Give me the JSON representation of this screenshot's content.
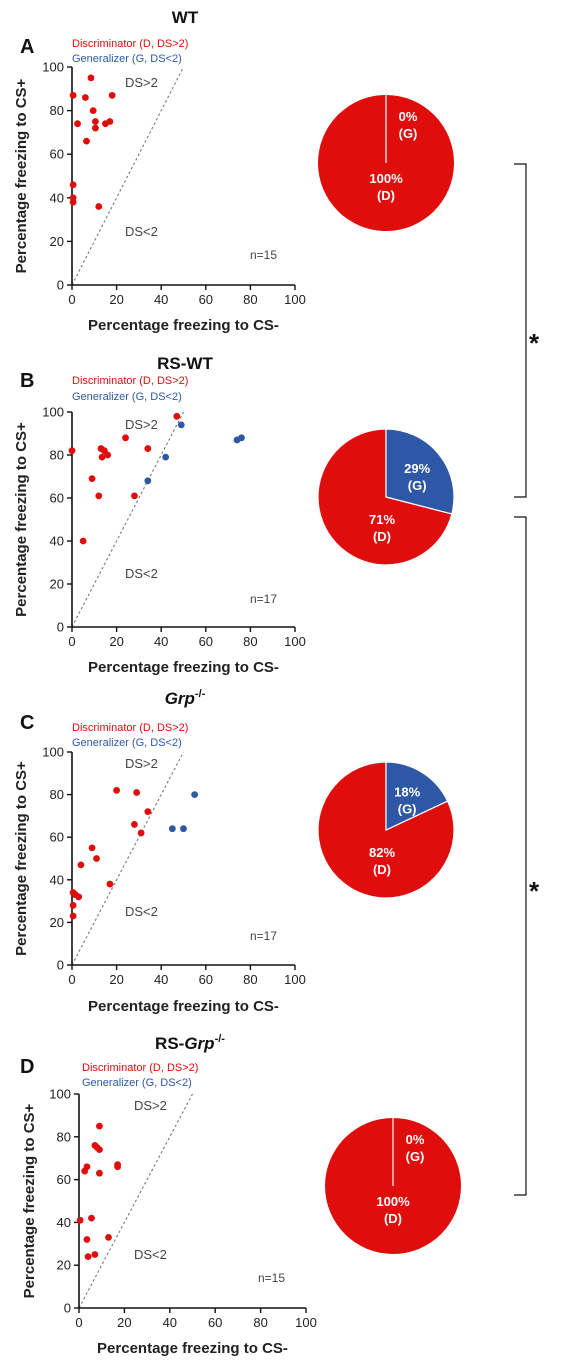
{
  "colors": {
    "discriminator": "#e00d0d",
    "generalizer": "#2e58a5",
    "diagonal": "#777777",
    "axis": "#111111"
  },
  "legend": {
    "discriminator": "Discriminator (D, DS>2)",
    "generalizer": "Generalizer (G, DS<2)"
  },
  "region_labels": {
    "above": "DS>2",
    "below": "DS<2"
  },
  "significance_marker": "*",
  "chart_data": [
    {
      "type": "scatter",
      "panel_label": "A",
      "title": "WT",
      "xlabel": "Percentage freezing to CS-",
      "ylabel": "Percentage freezing to CS+",
      "xlim": [
        0,
        100
      ],
      "ylim": [
        0,
        100
      ],
      "xticks": [
        0,
        20,
        40,
        60,
        80,
        100
      ],
      "yticks": [
        0,
        20,
        40,
        60,
        80,
        100
      ],
      "n_label": "n=15",
      "show_legend": true,
      "series": [
        {
          "name": "Discriminator (D, DS>2)",
          "group": "D",
          "points": [
            [
              0.5,
              87
            ],
            [
              0.5,
              46
            ],
            [
              0.5,
              40
            ],
            [
              0.5,
              38
            ],
            [
              2.5,
              74
            ],
            [
              6,
              86
            ],
            [
              6.5,
              66
            ],
            [
              8.5,
              95
            ],
            [
              9.5,
              80
            ],
            [
              10.5,
              75
            ],
            [
              10.5,
              72
            ],
            [
              12,
              36
            ],
            [
              15,
              74
            ],
            [
              17,
              75
            ],
            [
              18,
              87
            ]
          ]
        },
        {
          "name": "Generalizer (G, DS<2)",
          "group": "G",
          "points": []
        }
      ],
      "pie": {
        "type": "pie",
        "slices": [
          {
            "group": "G",
            "value": 0,
            "label": "0%",
            "sub": "(G)"
          },
          {
            "group": "D",
            "value": 100,
            "label": "100%",
            "sub": "(D)"
          }
        ]
      }
    },
    {
      "type": "scatter",
      "panel_label": "B",
      "title": "RS-WT",
      "xlabel": "Percentage freezing to CS-",
      "ylabel": "Percentage freezing to CS+",
      "xlim": [
        0,
        100
      ],
      "ylim": [
        0,
        100
      ],
      "xticks": [
        0,
        20,
        40,
        60,
        80,
        100
      ],
      "yticks": [
        0,
        20,
        40,
        60,
        80,
        100
      ],
      "n_label": "n=17",
      "show_legend": true,
      "series": [
        {
          "name": "Discriminator (D, DS>2)",
          "group": "D",
          "points": [
            [
              0,
              82
            ],
            [
              5,
              40
            ],
            [
              9,
              69
            ],
            [
              12,
              61
            ],
            [
              13,
              83
            ],
            [
              13.5,
              79
            ],
            [
              14.5,
              82
            ],
            [
              16,
              80
            ],
            [
              24,
              88
            ],
            [
              28,
              61
            ],
            [
              34,
              83
            ],
            [
              47,
              98
            ]
          ]
        },
        {
          "name": "Generalizer (G, DS<2)",
          "group": "G",
          "points": [
            [
              34,
              68
            ],
            [
              42,
              79
            ],
            [
              49,
              94
            ],
            [
              74,
              87
            ],
            [
              76,
              88
            ]
          ]
        }
      ],
      "pie": {
        "type": "pie",
        "slices": [
          {
            "group": "G",
            "value": 29,
            "label": "29%",
            "sub": "(G)"
          },
          {
            "group": "D",
            "value": 71,
            "label": "71%",
            "sub": "(D)"
          }
        ]
      }
    },
    {
      "type": "scatter",
      "panel_label": "C",
      "title": "Grp",
      "title_sup": "-/-",
      "xlabel": "Percentage freezing to CS-",
      "ylabel": "Percentage freezing to CS+",
      "xlim": [
        0,
        100
      ],
      "ylim": [
        0,
        100
      ],
      "xticks": [
        0,
        20,
        40,
        60,
        80,
        100
      ],
      "yticks": [
        0,
        20,
        40,
        60,
        80,
        100
      ],
      "n_label": "n=17",
      "show_legend": true,
      "series": [
        {
          "name": "Discriminator (D, DS>2)",
          "group": "D",
          "points": [
            [
              0.5,
              34
            ],
            [
              0.5,
              28
            ],
            [
              0.5,
              23
            ],
            [
              1.5,
              33
            ],
            [
              3,
              32
            ],
            [
              4,
              47
            ],
            [
              9,
              55
            ],
            [
              11,
              50
            ],
            [
              17,
              38
            ],
            [
              20,
              82
            ],
            [
              28,
              66
            ],
            [
              29,
              81
            ],
            [
              31,
              62
            ],
            [
              34,
              72
            ]
          ]
        },
        {
          "name": "Generalizer (G, DS<2)",
          "group": "G",
          "points": [
            [
              45,
              64
            ],
            [
              50,
              64
            ],
            [
              55,
              80
            ]
          ]
        }
      ],
      "pie": {
        "type": "pie",
        "slices": [
          {
            "group": "G",
            "value": 18,
            "label": "18%",
            "sub": "(G)"
          },
          {
            "group": "D",
            "value": 82,
            "label": "82%",
            "sub": "(D)"
          }
        ]
      }
    },
    {
      "type": "scatter",
      "panel_label": "D",
      "title": "RS-Grp",
      "title_sup": "-/-",
      "xlabel": "Percentage freezing to CS-",
      "ylabel": "Percentage freezing to CS+",
      "xlim": [
        0,
        100
      ],
      "ylim": [
        0,
        100
      ],
      "xticks": [
        0,
        20,
        40,
        60,
        80,
        100
      ],
      "yticks": [
        0,
        20,
        40,
        60,
        80,
        100
      ],
      "n_label": "n=15",
      "show_legend": true,
      "series": [
        {
          "name": "Discriminator (D, DS>2)",
          "group": "D",
          "points": [
            [
              0.5,
              41
            ],
            [
              2.5,
              64
            ],
            [
              3.5,
              66
            ],
            [
              3.5,
              32
            ],
            [
              4,
              24
            ],
            [
              5.5,
              42
            ],
            [
              7,
              76
            ],
            [
              7,
              25
            ],
            [
              8,
              75
            ],
            [
              9,
              63
            ],
            [
              9,
              74
            ],
            [
              9,
              85
            ],
            [
              13,
              33
            ],
            [
              17,
              66
            ],
            [
              17,
              67
            ]
          ]
        },
        {
          "name": "Generalizer (G, DS<2)",
          "group": "G",
          "points": []
        }
      ],
      "pie": {
        "type": "pie",
        "slices": [
          {
            "group": "G",
            "value": 0,
            "label": "0%",
            "sub": "(G)"
          },
          {
            "group": "D",
            "value": 100,
            "label": "100%",
            "sub": "(D)"
          }
        ]
      }
    }
  ]
}
